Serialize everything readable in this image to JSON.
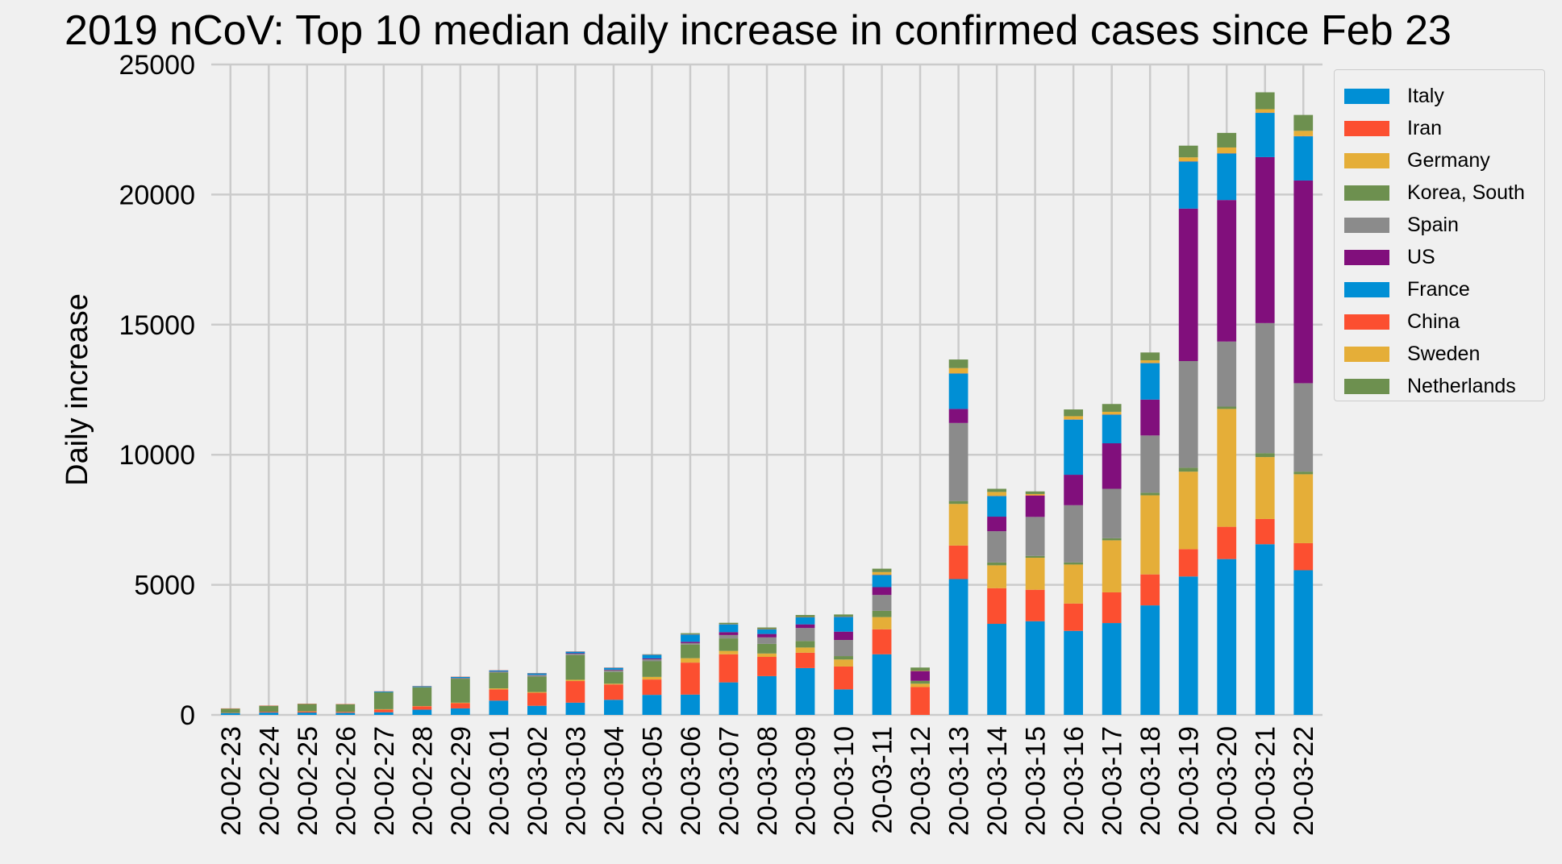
{
  "chart_data": {
    "type": "bar",
    "stacked": true,
    "title": "2019 nCoV: Top 10 median daily increase in confirmed cases since Feb 23",
    "ylabel": "Daily increase",
    "xlabel": "",
    "ylim": [
      0,
      25000
    ],
    "yticks": [
      0,
      5000,
      10000,
      15000,
      20000,
      25000
    ],
    "grid": true,
    "legend_position": "outside-right",
    "categories": [
      "20-02-23",
      "20-02-24",
      "20-02-25",
      "20-02-26",
      "20-02-27",
      "20-02-28",
      "20-02-29",
      "20-03-01",
      "20-03-02",
      "20-03-03",
      "20-03-04",
      "20-03-05",
      "20-03-06",
      "20-03-07",
      "20-03-08",
      "20-03-09",
      "20-03-10",
      "20-03-11",
      "20-03-12",
      "20-03-13",
      "20-03-14",
      "20-03-15",
      "20-03-16",
      "20-03-17",
      "20-03-18",
      "20-03-19",
      "20-03-20",
      "20-03-21",
      "20-03-22"
    ],
    "series": [
      {
        "name": "Italy",
        "color": "#008fd5",
        "values": [
          70,
          90,
          90,
          80,
          100,
          200,
          250,
          550,
          350,
          470,
          580,
          770,
          780,
          1250,
          1490,
          1800,
          980,
          2330,
          0,
          5220,
          3500,
          3600,
          3230,
          3530,
          4210,
          5320,
          5990,
          6560,
          5560
        ]
      },
      {
        "name": "Iran",
        "color": "#fc4f30",
        "values": [
          10,
          30,
          40,
          30,
          100,
          130,
          200,
          430,
          500,
          830,
          590,
          590,
          1230,
          1080,
          740,
          590,
          880,
          960,
          1070,
          1290,
          1370,
          1210,
          1050,
          1180,
          1190,
          1050,
          1240,
          970,
          1040
        ]
      },
      {
        "name": "Germany",
        "color": "#e5ae38",
        "values": [
          0,
          0,
          10,
          10,
          20,
          10,
          20,
          40,
          30,
          50,
          30,
          100,
          170,
          130,
          130,
          200,
          270,
          470,
          130,
          1600,
          880,
          1230,
          1500,
          2000,
          3040,
          2980,
          4530,
          2380,
          2650
        ]
      },
      {
        "name": "Korea, South",
        "color": "#6d904f",
        "values": [
          160,
          230,
          280,
          290,
          650,
          720,
          920,
          610,
          590,
          950,
          450,
          600,
          520,
          480,
          370,
          250,
          130,
          240,
          110,
          110,
          110,
          70,
          80,
          80,
          100,
          150,
          90,
          150,
          100
        ]
      },
      {
        "name": "Spain",
        "color": "#8b8b8b",
        "values": [
          0,
          0,
          0,
          0,
          0,
          10,
          20,
          30,
          60,
          50,
          70,
          80,
          60,
          130,
          250,
          500,
          620,
          610,
          0,
          3000,
          1200,
          1500,
          2200,
          1900,
          2200,
          4100,
          2500,
          5000,
          3400
        ]
      },
      {
        "name": "US",
        "color": "#810f7c",
        "values": [
          0,
          0,
          0,
          0,
          0,
          0,
          10,
          10,
          10,
          20,
          20,
          30,
          50,
          110,
          130,
          140,
          320,
          300,
          370,
          540,
          560,
          820,
          1170,
          1750,
          1380,
          5860,
          5440,
          6380,
          7790
        ]
      },
      {
        "name": "France",
        "color": "#008fd5",
        "values": [
          0,
          0,
          0,
          0,
          30,
          30,
          40,
          40,
          60,
          60,
          70,
          140,
          280,
          300,
          180,
          270,
          570,
          470,
          0,
          1360,
          790,
          0,
          2120,
          1100,
          1400,
          1810,
          1790,
          1700,
          1700
        ]
      },
      {
        "name": "China",
        "color": "#fc4f30",
        "values": [
          10,
          10,
          10,
          10,
          10,
          10,
          10,
          10,
          10,
          10,
          10,
          10,
          10,
          10,
          10,
          10,
          10,
          10,
          10,
          10,
          10,
          10,
          10,
          10,
          10,
          10,
          10,
          10,
          10
        ]
      },
      {
        "name": "Sweden",
        "color": "#e5ae38",
        "values": [
          0,
          0,
          0,
          0,
          0,
          0,
          0,
          0,
          0,
          0,
          0,
          0,
          0,
          0,
          0,
          0,
          0,
          100,
          0,
          200,
          150,
          50,
          120,
          100,
          100,
          150,
          220,
          130,
          200
        ]
      },
      {
        "name": "Netherlands",
        "color": "#6d904f",
        "values": [
          0,
          0,
          0,
          0,
          0,
          0,
          0,
          0,
          0,
          0,
          0,
          10,
          40,
          50,
          60,
          80,
          80,
          130,
          130,
          330,
          120,
          100,
          260,
          300,
          300,
          450,
          560,
          650,
          610
        ]
      }
    ]
  }
}
